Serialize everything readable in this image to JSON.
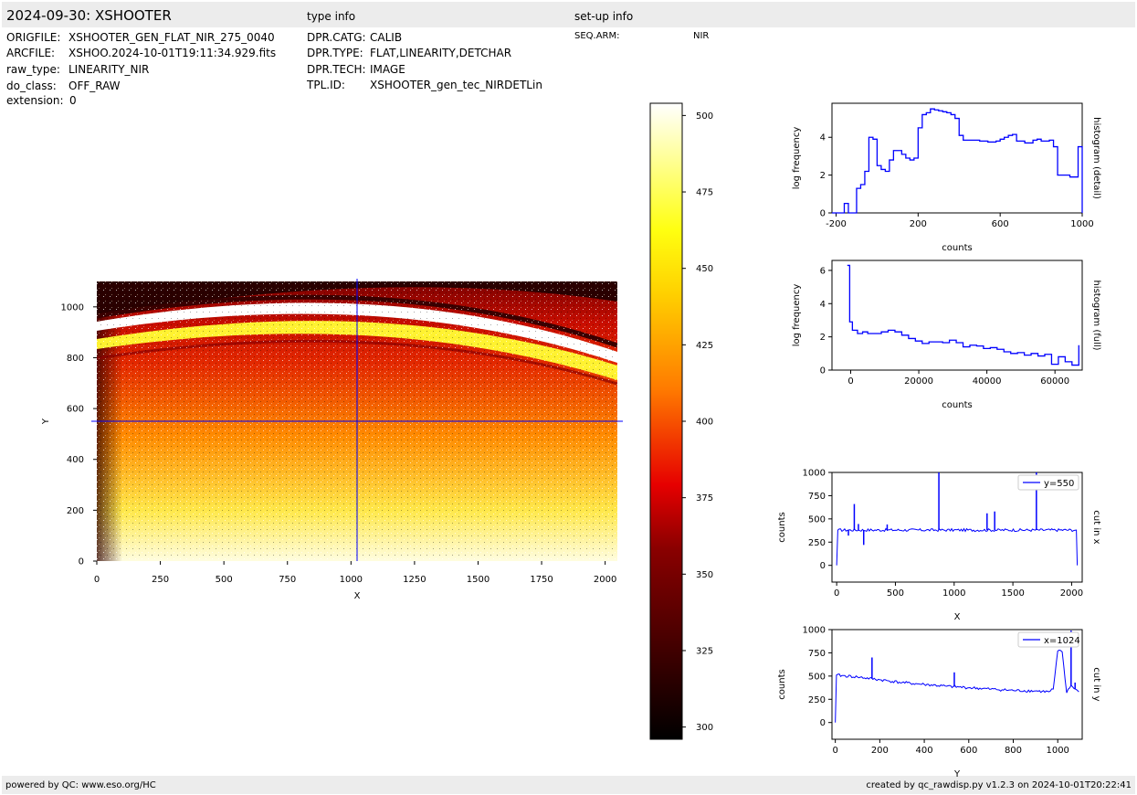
{
  "header": {
    "title": "2024-09-30: XSHOOTER",
    "type_info_title": "type info",
    "setup_info_title": "set-up info"
  },
  "file_info": [
    {
      "key": "ORIGFILE:",
      "value": "XSHOOTER_GEN_FLAT_NIR_275_0040"
    },
    {
      "key": "ARCFILE:",
      "value": "XSHOO.2024-10-01T19:11:34.929.fits"
    },
    {
      "key": "raw_type:",
      "value": "LINEARITY_NIR"
    },
    {
      "key": "do_class:",
      "value": "OFF_RAW"
    },
    {
      "key": "extension:",
      "value": "0"
    }
  ],
  "type_info": [
    {
      "key": "DPR.CATG:",
      "value": "CALIB"
    },
    {
      "key": "DPR.TYPE:",
      "value": "FLAT,LINEARITY,DETCHAR"
    },
    {
      "key": "DPR.TECH:",
      "value": "IMAGE"
    },
    {
      "key": "TPL.ID:",
      "value": "XSHOOTER_gen_tec_NIRDETLin"
    }
  ],
  "setup_info": [
    {
      "key": "SEQ.ARM:",
      "value": "NIR"
    }
  ],
  "footer": {
    "left": "powered by QC: www.eso.org/HC",
    "right": "created by qc_rawdisp.py v1.2.3 on 2024-10-01T20:22:41"
  },
  "colors": {
    "bar_bg": "#ececec",
    "line": "#0000ff",
    "crosshair": "#0000ff"
  },
  "chart_data": [
    {
      "type": "heatmap",
      "xlabel": "X",
      "ylabel": "Y",
      "xlim": [
        0,
        2048
      ],
      "ylim": [
        0,
        1100
      ],
      "xticks": [
        0,
        250,
        500,
        750,
        1000,
        1250,
        1500,
        1750,
        2000
      ],
      "yticks": [
        0,
        200,
        400,
        600,
        800,
        1000
      ],
      "crosshair": {
        "x": 1024,
        "y": 550
      },
      "colormap": "hot"
    },
    {
      "type": "colorbar",
      "range": [
        296,
        504
      ],
      "ticks": [
        300,
        325,
        350,
        375,
        400,
        425,
        450,
        475,
        500
      ]
    },
    {
      "type": "line",
      "title": "histogram (detail)",
      "xlabel": "counts",
      "ylabel": "log frequency",
      "xlim": [
        -220,
        1000
      ],
      "ylim": [
        0,
        5.8
      ],
      "xticks": [
        -200,
        200,
        600,
        1000
      ],
      "xtick_labels": [
        "-200",
        "200",
        "600",
        "1000"
      ],
      "yticks": [
        0,
        2,
        4
      ],
      "step": true,
      "x": [
        -220,
        -180,
        -160,
        -140,
        -100,
        -80,
        -60,
        -40,
        -20,
        0,
        20,
        40,
        60,
        80,
        100,
        120,
        140,
        160,
        180,
        200,
        220,
        240,
        260,
        280,
        300,
        320,
        340,
        360,
        380,
        400,
        420,
        440,
        460,
        480,
        500,
        520,
        540,
        560,
        580,
        600,
        620,
        640,
        660,
        680,
        700,
        720,
        740,
        760,
        780,
        800,
        820,
        840,
        860,
        880,
        900,
        920,
        940,
        960,
        980,
        1000
      ],
      "y": [
        0,
        0,
        0.5,
        0,
        1.3,
        1.5,
        2.2,
        4.0,
        3.9,
        2.5,
        2.3,
        2.2,
        2.8,
        3.3,
        3.3,
        3.1,
        2.9,
        2.8,
        2.9,
        4.5,
        5.2,
        5.3,
        5.5,
        5.45,
        5.4,
        5.35,
        5.3,
        5.2,
        5.0,
        4.1,
        3.85,
        3.85,
        3.85,
        3.85,
        3.8,
        3.8,
        3.75,
        3.75,
        3.8,
        3.9,
        4.0,
        4.1,
        4.15,
        3.8,
        3.8,
        3.7,
        3.7,
        3.85,
        3.9,
        3.8,
        3.8,
        3.85,
        3.5,
        2.0,
        2.0,
        2.0,
        1.9,
        1.9,
        3.5,
        0
      ]
    },
    {
      "type": "line",
      "title": "histogram (full)",
      "xlabel": "counts",
      "ylabel": "log frequency",
      "xlim": [
        -5500,
        68000
      ],
      "ylim": [
        0,
        6.6
      ],
      "xticks": [
        0,
        20000,
        40000,
        60000
      ],
      "yticks": [
        0,
        2,
        4,
        6
      ],
      "step": true,
      "x": [
        -1000,
        -300,
        500,
        2000,
        3500,
        5000,
        7000,
        9000,
        11000,
        13000,
        15000,
        17000,
        19000,
        21000,
        23000,
        25000,
        27000,
        29000,
        31000,
        33000,
        35000,
        37000,
        39000,
        41000,
        43000,
        45000,
        47000,
        49000,
        51000,
        53000,
        55000,
        57000,
        59000,
        61000,
        63000,
        65000,
        67000
      ],
      "y": [
        6.3,
        2.9,
        2.4,
        2.2,
        2.3,
        2.2,
        2.2,
        2.3,
        2.4,
        2.3,
        2.1,
        1.9,
        1.75,
        1.6,
        1.7,
        1.7,
        1.65,
        1.8,
        1.65,
        1.4,
        1.5,
        1.45,
        1.3,
        1.35,
        1.25,
        1.1,
        1.0,
        1.05,
        0.9,
        1.0,
        0.85,
        0.95,
        0.35,
        0.8,
        0.5,
        0.3,
        1.5
      ]
    },
    {
      "type": "line",
      "title": "cut in x",
      "xlabel": "X",
      "ylabel": "counts",
      "xlim": [
        -40,
        2090
      ],
      "ylim": [
        -180,
        1000
      ],
      "xticks": [
        0,
        500,
        1000,
        1500,
        2000
      ],
      "yticks": [
        0,
        250,
        500,
        750,
        1000
      ],
      "legend": "y=550",
      "baseline": 380,
      "x": [
        0,
        10,
        2040,
        2048
      ],
      "y": [
        0,
        380,
        380,
        0
      ],
      "spikes": [
        {
          "x": 150,
          "y": 660
        },
        {
          "x": 185,
          "y": 445
        },
        {
          "x": 230,
          "y": 220
        },
        {
          "x": 100,
          "y": 320
        },
        {
          "x": 870,
          "y": 1000
        },
        {
          "x": 1280,
          "y": 560
        },
        {
          "x": 1345,
          "y": 580
        },
        {
          "x": 1700,
          "y": 1000
        },
        {
          "x": 430,
          "y": 440
        }
      ]
    },
    {
      "type": "line",
      "title": "cut in y",
      "xlabel": "Y",
      "ylabel": "counts",
      "xlim": [
        -15,
        1110
      ],
      "ylim": [
        -180,
        1000
      ],
      "xticks": [
        0,
        200,
        400,
        600,
        800,
        1000
      ],
      "yticks": [
        0,
        250,
        500,
        750,
        1000
      ],
      "legend": "x=1024",
      "x": [
        0,
        5,
        100,
        200,
        300,
        400,
        500,
        600,
        700,
        800,
        900,
        930,
        960,
        980,
        1000,
        1020,
        1040,
        1060,
        1080,
        1095
      ],
      "y": [
        0,
        510,
        490,
        460,
        430,
        410,
        390,
        375,
        360,
        345,
        340,
        335,
        330,
        360,
        770,
        760,
        320,
        400,
        360,
        330
      ],
      "spikes": [
        {
          "x": 165,
          "y": 700
        },
        {
          "x": 535,
          "y": 540
        },
        {
          "x": 1060,
          "y": 990
        },
        {
          "x": 1078,
          "y": 430
        }
      ]
    }
  ]
}
